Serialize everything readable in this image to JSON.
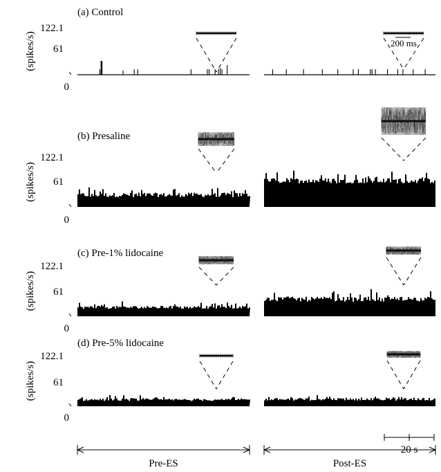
{
  "chart_data": {
    "type": "bar",
    "y_unit": "(spikes/s)",
    "yticks": [
      "122.1",
      "61",
      "0"
    ],
    "ylim": [
      0,
      122.1
    ],
    "columns": [
      "Pre-ES",
      "Post-ES"
    ],
    "scale_bars": {
      "time": "20 s",
      "inset": "200 ms"
    },
    "panels": [
      {
        "label": "(a) Control",
        "pre_baseline": 0,
        "post_baseline": 0,
        "pre_spikes": [
          {
            "t": 0.13,
            "h": 8
          },
          {
            "t": 0.14,
            "h": 20
          },
          {
            "t": 0.265,
            "h": 6
          },
          {
            "t": 0.33,
            "h": 8
          },
          {
            "t": 0.35,
            "h": 8
          },
          {
            "t": 0.66,
            "h": 8
          },
          {
            "t": 0.755,
            "h": 8
          },
          {
            "t": 0.765,
            "h": 8
          },
          {
            "t": 0.8,
            "h": 8
          },
          {
            "t": 0.82,
            "h": 8
          },
          {
            "t": 0.83,
            "h": 10
          },
          {
            "t": 0.84,
            "h": 8
          },
          {
            "t": 0.87,
            "h": 14
          }
        ],
        "post_spikes": [
          {
            "t": 0.05,
            "h": 8
          },
          {
            "t": 0.13,
            "h": 8
          },
          {
            "t": 0.23,
            "h": 8
          },
          {
            "t": 0.34,
            "h": 8
          },
          {
            "t": 0.43,
            "h": 8
          },
          {
            "t": 0.52,
            "h": 8
          },
          {
            "t": 0.55,
            "h": 8
          },
          {
            "t": 0.62,
            "h": 8
          },
          {
            "t": 0.63,
            "h": 8
          },
          {
            "t": 0.65,
            "h": 8
          },
          {
            "t": 0.72,
            "h": 8
          },
          {
            "t": 0.78,
            "h": 8
          },
          {
            "t": 0.81,
            "h": 8
          },
          {
            "t": 0.87,
            "h": 8
          },
          {
            "t": 0.94,
            "h": 8
          }
        ],
        "inset_positions": [
          "pre",
          "post"
        ]
      },
      {
        "label": "(b) Presaline",
        "pre_baseline": 30,
        "post_baseline": 65,
        "pre_noise": 18,
        "post_noise": 22,
        "inset_positions": [
          "pre",
          "post"
        ]
      },
      {
        "label": "(c) Pre-1% lidocaine",
        "pre_baseline": 22,
        "post_baseline": 42,
        "pre_noise": 12,
        "post_noise": 20,
        "inset_positions": [
          "pre",
          "post"
        ]
      },
      {
        "label": "(d) Pre-5% lidocaine",
        "pre_baseline": 16,
        "post_baseline": 17,
        "pre_noise": 10,
        "post_noise": 10,
        "inset_positions": [
          "pre",
          "post"
        ]
      }
    ]
  }
}
